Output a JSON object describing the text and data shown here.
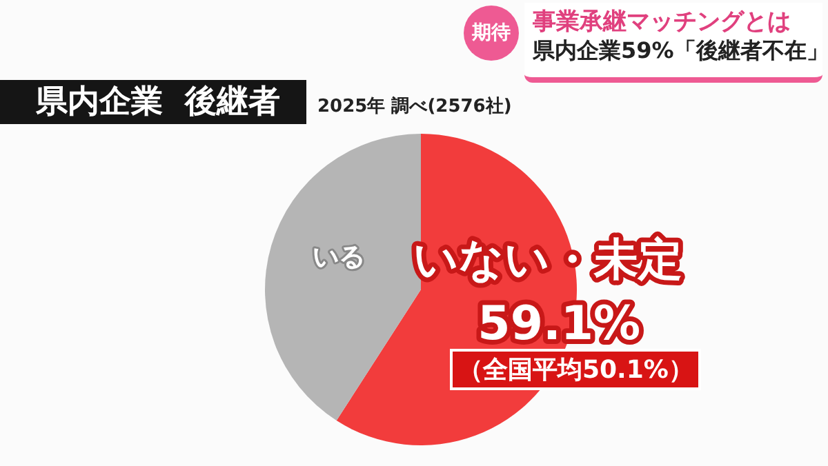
{
  "chart_data": {
    "type": "pie",
    "title": "県内企業 後継者",
    "subtitle": "2025年 調べ(2576社)",
    "categories": [
      "いない・未定",
      "いる"
    ],
    "values": [
      59.1,
      40.9
    ],
    "colors": [
      "#f23c3c",
      "#b5b5b5"
    ],
    "value_labels": [
      "59.1%",
      null
    ],
    "legend": false,
    "annotations": [
      "（全国平均50.1%）",
      "期待",
      "事業承継マッチングとは",
      "県内企業59%「後継者不在」"
    ]
  }
}
